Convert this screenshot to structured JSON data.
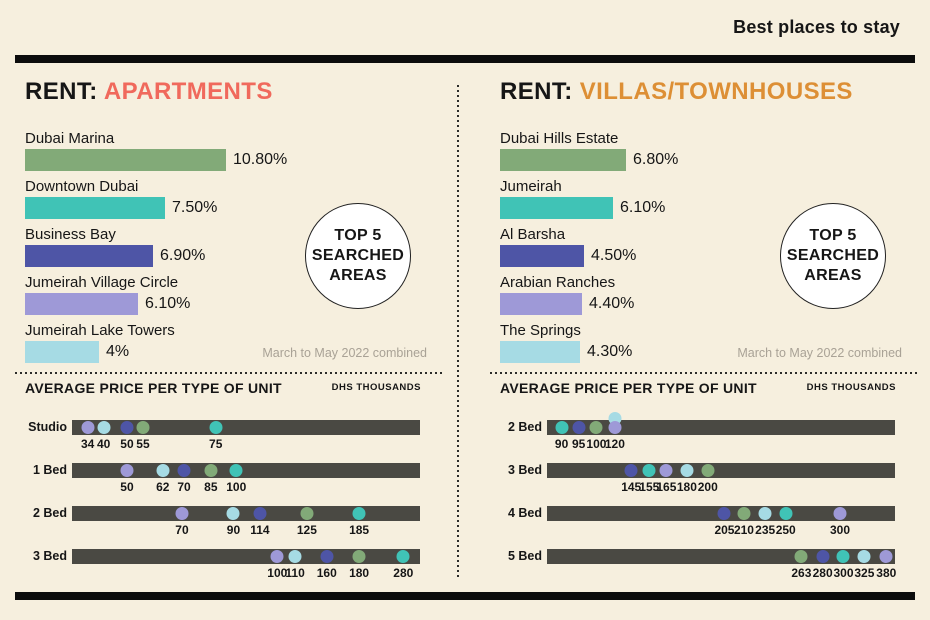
{
  "header": {
    "tagline": "Best places to stay"
  },
  "badge": {
    "line1": "TOP 5",
    "line2": "SEARCHED",
    "line3": "AREAS"
  },
  "footnote": "March to May 2022 combined",
  "palette": {
    "background": "#f6efde",
    "ink": "#161616",
    "track": "#4a4943",
    "muted_text": "#a9a296",
    "accent_apartments": "#f0695c",
    "accent_villas": "#dd8f35",
    "rank_colors": [
      "#82aa78",
      "#40c3b6",
      "#4e55a6",
      "#9e99d7",
      "#a6dbe4"
    ]
  },
  "panels": [
    {
      "key": "apartments",
      "title_prefix": "RENT:",
      "title_text": "APARTMENTS",
      "accent": "#f0695c",
      "top_areas": [
        {
          "name": "Dubai Marina",
          "pct": 10.8,
          "pct_label": "10.80%",
          "color": "#82aa78"
        },
        {
          "name": "Downtown Dubai",
          "pct": 7.5,
          "pct_label": "7.50%",
          "color": "#40c3b6"
        },
        {
          "name": "Business Bay",
          "pct": 6.9,
          "pct_label": "6.90%",
          "color": "#4e55a6"
        },
        {
          "name": "Jumeirah Village Circle",
          "pct": 6.1,
          "pct_label": "6.10%",
          "color": "#9e99d7"
        },
        {
          "name": "Jumeirah Lake Towers",
          "pct": 4.0,
          "pct_label": "4%",
          "color": "#a6dbe4"
        }
      ],
      "price_title": "AVERAGE PRICE PER TYPE OF UNIT",
      "price_unit": "DHS THOUSANDS",
      "price_rows": [
        {
          "label": "Studio",
          "dots": [
            {
              "value": 34,
              "color": "#9e99d7",
              "pos": 0.045
            },
            {
              "value": 40,
              "color": "#a6dbe4",
              "pos": 0.091
            },
            {
              "value": 50,
              "color": "#4e55a6",
              "pos": 0.158
            },
            {
              "value": 55,
              "color": "#82aa78",
              "pos": 0.204
            },
            {
              "value": 75,
              "color": "#40c3b6",
              "pos": 0.413
            }
          ]
        },
        {
          "label": "1 Bed",
          "dots": [
            {
              "value": 50,
              "color": "#9e99d7",
              "pos": 0.158
            },
            {
              "value": 62,
              "color": "#a6dbe4",
              "pos": 0.261
            },
            {
              "value": 70,
              "color": "#4e55a6",
              "pos": 0.322
            },
            {
              "value": 85,
              "color": "#82aa78",
              "pos": 0.399
            },
            {
              "value": 100,
              "color": "#40c3b6",
              "pos": 0.472
            }
          ]
        },
        {
          "label": "2 Bed",
          "dots": [
            {
              "value": 70,
              "color": "#9e99d7",
              "pos": 0.316
            },
            {
              "value": 90,
              "color": "#a6dbe4",
              "pos": 0.464
            },
            {
              "value": 114,
              "color": "#4e55a6",
              "pos": 0.54
            },
            {
              "value": 125,
              "color": "#82aa78",
              "pos": 0.675
            },
            {
              "value": 185,
              "color": "#40c3b6",
              "pos": 0.825
            }
          ]
        },
        {
          "label": "3 Bed",
          "dots": [
            {
              "value": 100,
              "color": "#9e99d7",
              "pos": 0.59
            },
            {
              "value": 110,
              "color": "#a6dbe4",
              "pos": 0.641
            },
            {
              "value": 160,
              "color": "#4e55a6",
              "pos": 0.732
            },
            {
              "value": 180,
              "color": "#82aa78",
              "pos": 0.825
            },
            {
              "value": 280,
              "color": "#40c3b6",
              "pos": 0.952
            }
          ]
        }
      ]
    },
    {
      "key": "villas",
      "title_prefix": "RENT:",
      "title_text": "VILLAS/TOWNHOUSES",
      "accent": "#dd8f35",
      "top_areas": [
        {
          "name": "Dubai Hills Estate",
          "pct": 6.8,
          "pct_label": "6.80%",
          "color": "#82aa78"
        },
        {
          "name": "Jumeirah",
          "pct": 6.1,
          "pct_label": "6.10%",
          "color": "#40c3b6"
        },
        {
          "name": "Al Barsha",
          "pct": 4.5,
          "pct_label": "4.50%",
          "color": "#4e55a6"
        },
        {
          "name": "Arabian Ranches",
          "pct": 4.4,
          "pct_label": "4.40%",
          "color": "#9e99d7"
        },
        {
          "name": "The Springs",
          "pct": 4.3,
          "pct_label": "4.30%",
          "color": "#a6dbe4"
        }
      ],
      "price_title": "AVERAGE PRICE PER TYPE OF UNIT",
      "price_unit": "DHS THOUSANDS",
      "price_rows": [
        {
          "label": "2 Bed",
          "dots": [
            {
              "value": 90,
              "color": "#40c3b6",
              "pos": 0.042
            },
            {
              "value": 95,
              "color": "#4e55a6",
              "pos": 0.091
            },
            {
              "value": 100,
              "color": "#82aa78",
              "pos": 0.142
            },
            {
              "value": 120,
              "color": "#a6dbe4",
              "pos": 0.195,
              "raised": true,
              "show_label": false
            },
            {
              "value": 120,
              "color": "#9e99d7",
              "pos": 0.195
            }
          ]
        },
        {
          "label": "3 Bed",
          "dots": [
            {
              "value": 145,
              "color": "#4e55a6",
              "pos": 0.242
            },
            {
              "value": 155,
              "color": "#40c3b6",
              "pos": 0.294
            },
            {
              "value": 165,
              "color": "#9e99d7",
              "pos": 0.343
            },
            {
              "value": 180,
              "color": "#a6dbe4",
              "pos": 0.402
            },
            {
              "value": 200,
              "color": "#82aa78",
              "pos": 0.462
            }
          ]
        },
        {
          "label": "4 Bed",
          "dots": [
            {
              "value": 205,
              "color": "#4e55a6",
              "pos": 0.51
            },
            {
              "value": 210,
              "color": "#82aa78",
              "pos": 0.566
            },
            {
              "value": 235,
              "color": "#a6dbe4",
              "pos": 0.627
            },
            {
              "value": 250,
              "color": "#40c3b6",
              "pos": 0.686
            },
            {
              "value": 300,
              "color": "#9e99d7",
              "pos": 0.842
            }
          ]
        },
        {
          "label": "5 Bed",
          "dots": [
            {
              "value": 263,
              "color": "#82aa78",
              "pos": 0.731
            },
            {
              "value": 280,
              "color": "#4e55a6",
              "pos": 0.792
            },
            {
              "value": 300,
              "color": "#40c3b6",
              "pos": 0.852
            },
            {
              "value": 325,
              "color": "#a6dbe4",
              "pos": 0.912
            },
            {
              "value": 380,
              "color": "#9e99d7",
              "pos": 0.975
            }
          ]
        }
      ]
    }
  ],
  "chart_data": [
    {
      "type": "bar",
      "title": "RENT: APARTMENTS",
      "subtitle": "TOP 5 SEARCHED AREAS",
      "note": "March to May 2022 combined",
      "orientation": "horizontal",
      "categories": [
        "Dubai Marina",
        "Downtown Dubai",
        "Business Bay",
        "Jumeirah Village Circle",
        "Jumeirah Lake Towers"
      ],
      "values": [
        10.8,
        7.5,
        6.9,
        6.1,
        4.0
      ],
      "value_labels": [
        "10.80%",
        "7.50%",
        "6.90%",
        "6.10%",
        "4%"
      ]
    },
    {
      "type": "scatter",
      "title": "AVERAGE PRICE PER TYPE OF UNIT (APARTMENTS)",
      "unit": "DHS THOUSANDS",
      "categories": [
        "Studio",
        "1 Bed",
        "2 Bed",
        "3 Bed"
      ],
      "series": [
        {
          "name": "Dubai Marina",
          "values": [
            55,
            85,
            125,
            180
          ]
        },
        {
          "name": "Downtown Dubai",
          "values": [
            75,
            100,
            185,
            280
          ]
        },
        {
          "name": "Business Bay",
          "values": [
            50,
            70,
            114,
            160
          ]
        },
        {
          "name": "Jumeirah Village Circle",
          "values": [
            34,
            50,
            70,
            100
          ]
        },
        {
          "name": "Jumeirah Lake Towers",
          "values": [
            40,
            62,
            90,
            110
          ]
        }
      ]
    },
    {
      "type": "bar",
      "title": "RENT: VILLAS/TOWNHOUSES",
      "subtitle": "TOP 5 SEARCHED AREAS",
      "note": "March to May 2022 combined",
      "orientation": "horizontal",
      "categories": [
        "Dubai Hills Estate",
        "Jumeirah",
        "Al Barsha",
        "Arabian Ranches",
        "The Springs"
      ],
      "values": [
        6.8,
        6.1,
        4.5,
        4.4,
        4.3
      ],
      "value_labels": [
        "6.80%",
        "6.10%",
        "4.50%",
        "4.40%",
        "4.30%"
      ]
    },
    {
      "type": "scatter",
      "title": "AVERAGE PRICE PER TYPE OF UNIT (VILLAS/TOWNHOUSES)",
      "unit": "DHS THOUSANDS",
      "categories": [
        "2 Bed",
        "3 Bed",
        "4 Bed",
        "5 Bed"
      ],
      "series": [
        {
          "name": "Dubai Hills Estate",
          "values": [
            100,
            200,
            210,
            263
          ]
        },
        {
          "name": "Jumeirah",
          "values": [
            90,
            155,
            250,
            300
          ]
        },
        {
          "name": "Al Barsha",
          "values": [
            95,
            145,
            205,
            280
          ]
        },
        {
          "name": "Arabian Ranches",
          "values": [
            120,
            165,
            300,
            380
          ]
        },
        {
          "name": "The Springs",
          "values": [
            120,
            180,
            235,
            325
          ]
        }
      ]
    }
  ]
}
